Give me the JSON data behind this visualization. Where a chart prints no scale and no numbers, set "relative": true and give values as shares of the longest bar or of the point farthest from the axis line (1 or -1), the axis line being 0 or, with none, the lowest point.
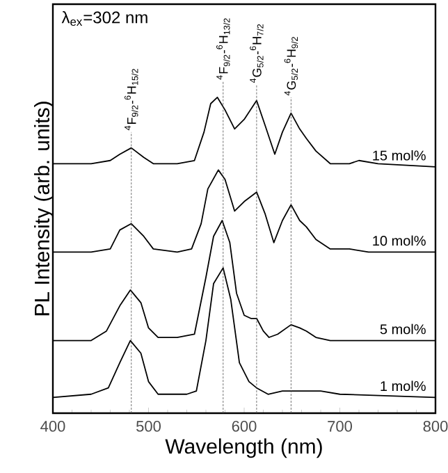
{
  "chart_data": {
    "type": "line",
    "relative": true,
    "xlabel": "Wavelength (nm)",
    "ylabel": "PL Intensity (arb. units)",
    "xlim": [
      400,
      800
    ],
    "xticks": [
      400,
      500,
      600,
      700,
      800
    ],
    "line_style": "solid",
    "annotations": [
      "λ$_{ex}$=302 nm"
    ],
    "ref_lines": [
      {
        "axis": "x",
        "value": 482,
        "label": "$^{4}$F$_{9/2}$-$^{6}$H$_{15/2}$",
        "line_style": "dashed"
      },
      {
        "axis": "x",
        "value": 578,
        "label": "$^{4}$F$_{9/2}$-$^{6}$H$_{13/2}$",
        "line_style": "dashed"
      },
      {
        "axis": "x",
        "value": 613,
        "label": "$^{4}$G$_{5/2}$-$^{6}$H$_{7/2}$",
        "line_style": "dashed"
      },
      {
        "axis": "x",
        "value": 649,
        "label": "$^{4}$G$_{5/2}$-$^{6}$H$_{9/2}$",
        "line_style": "dashed"
      }
    ],
    "series": [
      {
        "name": "15 mol%",
        "color": "#000000",
        "x": [
          400,
          420,
          440,
          460,
          470,
          482,
          495,
          505,
          530,
          548,
          558,
          565,
          572,
          580,
          590,
          600,
          613,
          622,
          632,
          640,
          649,
          658,
          665,
          675,
          690,
          710,
          720,
          740,
          800
        ],
        "values": [
          0.79,
          0.79,
          0.79,
          0.8,
          0.82,
          0.84,
          0.81,
          0.79,
          0.79,
          0.8,
          0.89,
          0.98,
          1.0,
          0.96,
          0.9,
          0.93,
          0.99,
          0.91,
          0.82,
          0.89,
          0.95,
          0.9,
          0.87,
          0.83,
          0.79,
          0.79,
          0.8,
          0.79,
          0.78
        ]
      },
      {
        "name": "10 mol%",
        "color": "#000000",
        "x": [
          400,
          440,
          460,
          470,
          482,
          495,
          505,
          530,
          545,
          555,
          562,
          573,
          580,
          590,
          600,
          613,
          622,
          631,
          640,
          649,
          658,
          665,
          675,
          690,
          710,
          730,
          800
        ],
        "values": [
          0.51,
          0.51,
          0.52,
          0.58,
          0.6,
          0.56,
          0.52,
          0.51,
          0.52,
          0.6,
          0.71,
          0.77,
          0.74,
          0.64,
          0.67,
          0.7,
          0.63,
          0.54,
          0.61,
          0.66,
          0.61,
          0.59,
          0.55,
          0.52,
          0.52,
          0.51,
          0.51
        ]
      },
      {
        "name": "5 mol%",
        "color": "#000000",
        "x": [
          400,
          440,
          456,
          470,
          481,
          492,
          500,
          510,
          530,
          548,
          560,
          568,
          577,
          585,
          592,
          600,
          607,
          613,
          620,
          626,
          635,
          649,
          658,
          665,
          675,
          690,
          800
        ],
        "values": [
          0.23,
          0.23,
          0.26,
          0.34,
          0.39,
          0.35,
          0.27,
          0.24,
          0.24,
          0.25,
          0.43,
          0.56,
          0.61,
          0.54,
          0.38,
          0.31,
          0.3,
          0.3,
          0.26,
          0.24,
          0.25,
          0.28,
          0.27,
          0.26,
          0.24,
          0.23,
          0.23
        ]
      },
      {
        "name": "1 mol%",
        "color": "#000000",
        "x": [
          400,
          440,
          458,
          470,
          481,
          492,
          500,
          510,
          540,
          550,
          560,
          568,
          578,
          586,
          595,
          605,
          613,
          625,
          640,
          665,
          680,
          700,
          800
        ],
        "values": [
          0.05,
          0.06,
          0.08,
          0.16,
          0.23,
          0.19,
          0.1,
          0.06,
          0.06,
          0.07,
          0.23,
          0.41,
          0.46,
          0.36,
          0.16,
          0.1,
          0.08,
          0.06,
          0.07,
          0.07,
          0.07,
          0.06,
          0.05
        ]
      }
    ]
  }
}
